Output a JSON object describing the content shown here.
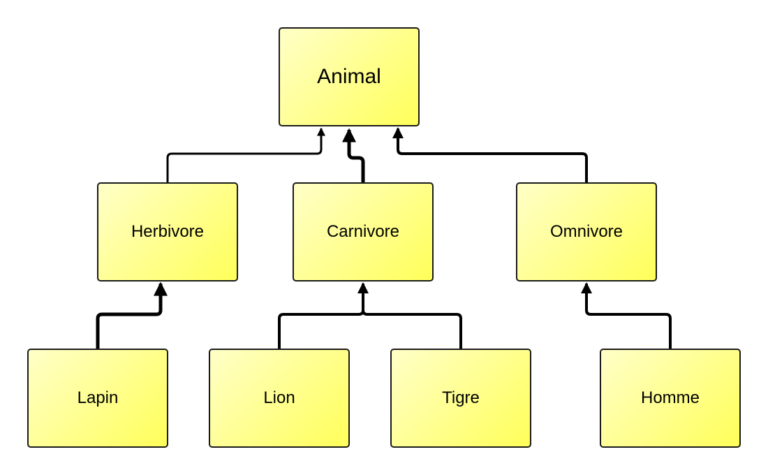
{
  "colors": {
    "node_fill_light": "#ffffc8",
    "node_fill_dark": "#ffff5a",
    "border": "#1a1a1a",
    "edge": "#000000"
  },
  "nodes": {
    "animal": "Animal",
    "herbivore": "Herbivore",
    "carnivore": "Carnivore",
    "omnivore": "Omnivore",
    "lapin": "Lapin",
    "lion": "Lion",
    "tigre": "Tigre",
    "homme": "Homme"
  },
  "edges": [
    {
      "from": "herbivore",
      "to": "animal"
    },
    {
      "from": "carnivore",
      "to": "animal"
    },
    {
      "from": "omnivore",
      "to": "animal"
    },
    {
      "from": "lapin",
      "to": "herbivore"
    },
    {
      "from": "lion",
      "to": "carnivore"
    },
    {
      "from": "tigre",
      "to": "carnivore"
    },
    {
      "from": "homme",
      "to": "omnivore"
    }
  ]
}
